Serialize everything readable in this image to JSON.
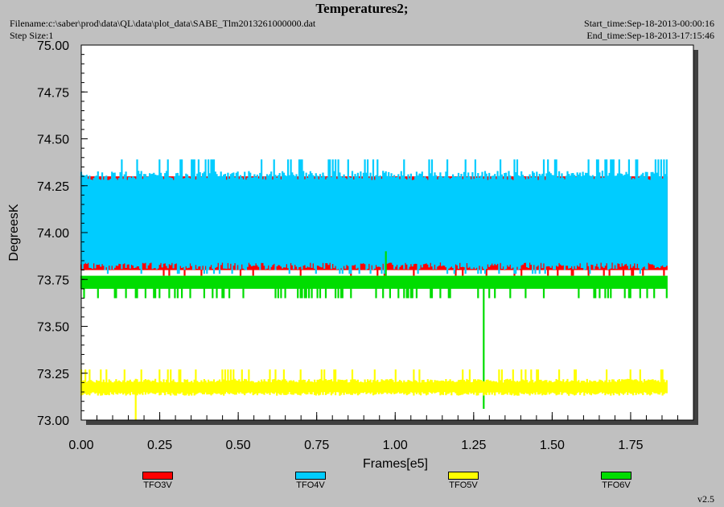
{
  "header": {
    "title": "Temperatures2;",
    "filename": "Filename:c:\\saber\\prod\\data\\QL\\data\\plot_data\\SABE_Tlm2013261000000.dat",
    "step_size": "Step Size:1",
    "start_time": "Start_time:Sep-18-2013-00:00:16",
    "end_time": "End_time:Sep-18-2013-17:15:46"
  },
  "version": "v2.5",
  "chart_data": {
    "type": "line",
    "title": "Temperatures2;",
    "xlabel": "Frames[e5]",
    "ylabel": "DegreesK",
    "xlim": [
      0,
      1.95
    ],
    "ylim": [
      73.0,
      75.0
    ],
    "x_ticks": [
      "0.00",
      "0.25",
      "0.50",
      "0.75",
      "1.00",
      "1.25",
      "1.50",
      "1.75"
    ],
    "y_ticks": [
      "73.00",
      "73.25",
      "73.50",
      "73.75",
      "74.00",
      "74.25",
      "74.50",
      "74.75",
      "75.00"
    ],
    "x_end": 1.865,
    "series": [
      {
        "name": "TFO3V",
        "color": "#ff0000",
        "band": [
          73.8,
          74.3
        ],
        "low_spikes": [
          73.75
        ]
      },
      {
        "name": "TFO4V",
        "color": "#00ccff",
        "band": [
          73.8,
          74.35
        ],
        "max": 74.39,
        "min": 73.75
      },
      {
        "name": "TFO5V",
        "color": "#ffff00",
        "band": [
          73.15,
          73.22
        ],
        "max": 73.27,
        "min": 73.0
      },
      {
        "name": "TFO6V",
        "color": "#00dd00",
        "band": [
          73.7,
          73.77
        ],
        "max": 73.9,
        "min": 73.06
      }
    ],
    "grid": false,
    "legend_position": "bottom"
  }
}
